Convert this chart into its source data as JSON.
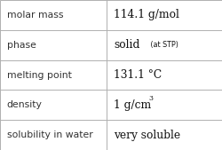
{
  "rows": [
    {
      "label": "molar mass",
      "value": "114.1 g/mol",
      "type": "normal"
    },
    {
      "label": "phase",
      "value": "solid",
      "type": "phase"
    },
    {
      "label": "melting point",
      "value": "131.1 °C",
      "type": "normal"
    },
    {
      "label": "density",
      "value": "1 g/cm",
      "type": "density"
    },
    {
      "label": "solubility in water",
      "value": "very soluble",
      "type": "normal"
    }
  ],
  "col_split": 0.48,
  "bg_color": "#ffffff",
  "border_color": "#b0b0b0",
  "label_color": "#333333",
  "value_color": "#111111",
  "label_fontsize": 7.8,
  "value_fontsize": 8.8,
  "sub_fontsize": 5.8,
  "super_fontsize": 5.5,
  "phase_sub": "(at STP)"
}
